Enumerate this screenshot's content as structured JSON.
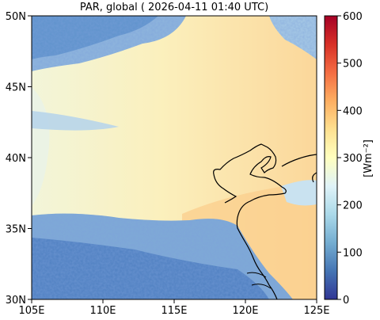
{
  "title": "PAR, global ( 2026-04-11 01:40 UTC)",
  "map": {
    "lon_ticks": [
      "105E",
      "110E",
      "115E",
      "120E",
      "125E"
    ],
    "lat_ticks": [
      "30N",
      "35N",
      "40N",
      "45N",
      "50N"
    ],
    "lon_range": [
      105,
      125
    ],
    "lat_range": [
      30,
      50
    ]
  },
  "colorbar": {
    "ticks": [
      "0",
      "100",
      "200",
      "300",
      "400",
      "500",
      "600"
    ],
    "range": [
      0,
      600
    ],
    "unit_label": "[Wm⁻²]",
    "colors": [
      "#313695",
      "#4575b4",
      "#74add1",
      "#abd9e9",
      "#e0f3f8",
      "#ffffbf",
      "#fee090",
      "#fdae61",
      "#f46d43",
      "#d73027",
      "#a50026"
    ]
  }
}
